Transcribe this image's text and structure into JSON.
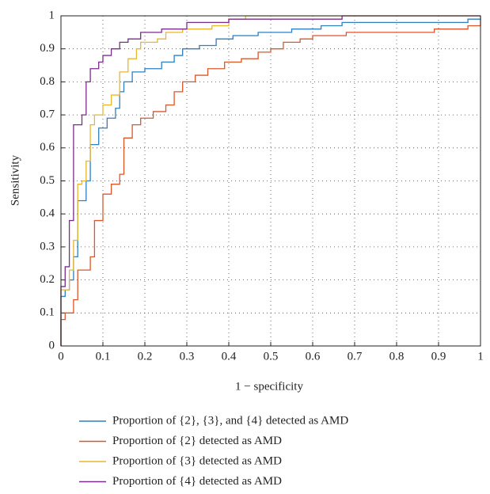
{
  "chart_data": {
    "type": "line",
    "xlabel": "1 − specificity",
    "ylabel": "Sensitivity",
    "xlim": [
      0,
      1
    ],
    "ylim": [
      0,
      1
    ],
    "xticks": [
      0,
      0.1,
      0.2,
      0.3,
      0.4,
      0.5,
      0.6,
      0.7,
      0.8,
      0.9,
      1
    ],
    "yticks": [
      0,
      0.1,
      0.2,
      0.3,
      0.4,
      0.5,
      0.6,
      0.7,
      0.8,
      0.9,
      1
    ],
    "grid": true,
    "legend": "bottom",
    "series": [
      {
        "name": "Proportion of {2}, {3}, and {4} detected as AMD",
        "color": "#2f7fc1",
        "x": [
          0,
          0,
          0.01,
          0.01,
          0.02,
          0.02,
          0.03,
          0.03,
          0.04,
          0.04,
          0.06,
          0.06,
          0.07,
          0.07,
          0.09,
          0.09,
          0.11,
          0.11,
          0.13,
          0.13,
          0.14,
          0.14,
          0.15,
          0.15,
          0.17,
          0.17,
          0.2,
          0.2,
          0.24,
          0.24,
          0.27,
          0.27,
          0.29,
          0.29,
          0.33,
          0.33,
          0.37,
          0.37,
          0.41,
          0.41,
          0.47,
          0.47,
          0.55,
          0.55,
          0.62,
          0.62,
          0.67,
          0.67,
          0.97,
          0.97,
          1,
          1
        ],
        "values": [
          0,
          0.15,
          0.15,
          0.17,
          0.17,
          0.2,
          0.2,
          0.27,
          0.27,
          0.44,
          0.44,
          0.5,
          0.5,
          0.61,
          0.61,
          0.66,
          0.66,
          0.69,
          0.69,
          0.72,
          0.72,
          0.77,
          0.77,
          0.8,
          0.8,
          0.83,
          0.83,
          0.84,
          0.84,
          0.86,
          0.86,
          0.88,
          0.88,
          0.9,
          0.9,
          0.91,
          0.91,
          0.93,
          0.93,
          0.94,
          0.94,
          0.95,
          0.95,
          0.96,
          0.96,
          0.97,
          0.97,
          0.98,
          0.98,
          0.99,
          0.99,
          1
        ]
      },
      {
        "name": "Proportion of {2} detected as AMD",
        "color": "#d9572b",
        "x": [
          0,
          0,
          0.01,
          0.01,
          0.03,
          0.03,
          0.04,
          0.04,
          0.07,
          0.07,
          0.08,
          0.08,
          0.1,
          0.1,
          0.12,
          0.12,
          0.14,
          0.14,
          0.15,
          0.15,
          0.17,
          0.17,
          0.19,
          0.19,
          0.22,
          0.22,
          0.25,
          0.25,
          0.27,
          0.27,
          0.29,
          0.29,
          0.32,
          0.32,
          0.35,
          0.35,
          0.39,
          0.39,
          0.43,
          0.43,
          0.47,
          0.47,
          0.5,
          0.5,
          0.53,
          0.53,
          0.57,
          0.57,
          0.6,
          0.6,
          0.68,
          0.68,
          0.89,
          0.89,
          0.97,
          0.97,
          1,
          1
        ],
        "values": [
          0,
          0.08,
          0.08,
          0.1,
          0.1,
          0.14,
          0.14,
          0.23,
          0.23,
          0.27,
          0.27,
          0.38,
          0.38,
          0.46,
          0.46,
          0.49,
          0.49,
          0.52,
          0.52,
          0.63,
          0.63,
          0.67,
          0.67,
          0.69,
          0.69,
          0.71,
          0.71,
          0.73,
          0.73,
          0.77,
          0.77,
          0.8,
          0.8,
          0.82,
          0.82,
          0.84,
          0.84,
          0.86,
          0.86,
          0.87,
          0.87,
          0.89,
          0.89,
          0.9,
          0.9,
          0.92,
          0.92,
          0.93,
          0.93,
          0.94,
          0.94,
          0.95,
          0.95,
          0.96,
          0.96,
          0.97,
          0.97,
          0.99
        ]
      },
      {
        "name": "Proportion of {3} detected as AMD",
        "color": "#e8b62f",
        "x": [
          0,
          0,
          0.02,
          0.02,
          0.03,
          0.03,
          0.04,
          0.04,
          0.05,
          0.05,
          0.06,
          0.06,
          0.07,
          0.07,
          0.08,
          0.08,
          0.1,
          0.1,
          0.12,
          0.12,
          0.14,
          0.14,
          0.16,
          0.16,
          0.18,
          0.18,
          0.19,
          0.19,
          0.23,
          0.23,
          0.25,
          0.25,
          0.29,
          0.29,
          0.36,
          0.36,
          0.4,
          0.4,
          0.44,
          0.44,
          1
        ],
        "values": [
          0,
          0.17,
          0.17,
          0.23,
          0.23,
          0.32,
          0.32,
          0.49,
          0.49,
          0.5,
          0.5,
          0.56,
          0.56,
          0.67,
          0.67,
          0.7,
          0.7,
          0.73,
          0.73,
          0.76,
          0.76,
          0.83,
          0.83,
          0.87,
          0.87,
          0.9,
          0.9,
          0.92,
          0.92,
          0.93,
          0.93,
          0.95,
          0.95,
          0.96,
          0.96,
          0.97,
          0.97,
          0.99,
          0.99,
          1,
          1
        ]
      },
      {
        "name": "Proportion of {4} detected as AMD",
        "color": "#7b2d8c",
        "x": [
          0,
          0,
          0.01,
          0.01,
          0.02,
          0.02,
          0.03,
          0.03,
          0.05,
          0.05,
          0.06,
          0.06,
          0.07,
          0.07,
          0.09,
          0.09,
          0.1,
          0.1,
          0.12,
          0.12,
          0.14,
          0.14,
          0.16,
          0.16,
          0.19,
          0.19,
          0.24,
          0.24,
          0.3,
          0.3,
          0.4,
          0.4,
          0.67,
          0.67,
          1
        ],
        "values": [
          0,
          0.18,
          0.18,
          0.24,
          0.24,
          0.38,
          0.38,
          0.67,
          0.67,
          0.7,
          0.7,
          0.8,
          0.8,
          0.84,
          0.84,
          0.86,
          0.86,
          0.88,
          0.88,
          0.9,
          0.9,
          0.92,
          0.92,
          0.93,
          0.93,
          0.95,
          0.95,
          0.96,
          0.96,
          0.98,
          0.98,
          0.99,
          0.99,
          1,
          1
        ]
      }
    ]
  }
}
